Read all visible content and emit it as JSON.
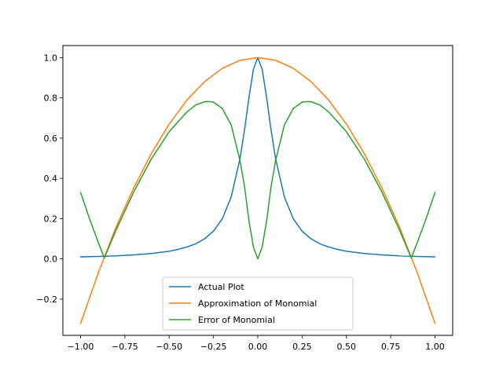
{
  "chart_data": {
    "type": "line",
    "title": "",
    "xlabel": "",
    "ylabel": "",
    "xlim": [
      -1.1,
      1.1
    ],
    "ylim": [
      -0.38,
      1.06
    ],
    "grid": false,
    "legend_position": "bottom-center",
    "x_ticks": [
      -1.0,
      -0.75,
      -0.5,
      -0.25,
      0.0,
      0.25,
      0.5,
      0.75,
      1.0
    ],
    "x_tick_labels": [
      "−1.00",
      "−0.75",
      "−0.50",
      "−0.25",
      "0.00",
      "0.25",
      "0.50",
      "0.75",
      "1.00"
    ],
    "y_ticks": [
      -0.2,
      0.0,
      0.2,
      0.4,
      0.6,
      0.8,
      1.0
    ],
    "y_tick_labels": [
      "−0.2",
      "0.0",
      "0.2",
      "0.4",
      "0.6",
      "0.8",
      "1.0"
    ],
    "series": [
      {
        "name": "Actual Plot",
        "color": "#1f77b4",
        "x": [
          -1.0,
          -0.9,
          -0.8,
          -0.7,
          -0.6,
          -0.5,
          -0.45,
          -0.4,
          -0.35,
          -0.3,
          -0.25,
          -0.2,
          -0.15,
          -0.1,
          -0.075,
          -0.05,
          -0.025,
          0.0,
          0.025,
          0.05,
          0.075,
          0.1,
          0.15,
          0.2,
          0.25,
          0.3,
          0.35,
          0.4,
          0.45,
          0.5,
          0.6,
          0.7,
          0.8,
          0.9,
          1.0
        ],
        "y": [
          0.01,
          0.012,
          0.015,
          0.02,
          0.027,
          0.038,
          0.047,
          0.059,
          0.075,
          0.1,
          0.138,
          0.2,
          0.308,
          0.5,
          0.64,
          0.8,
          0.941,
          1.0,
          0.941,
          0.8,
          0.64,
          0.5,
          0.308,
          0.2,
          0.138,
          0.1,
          0.075,
          0.059,
          0.047,
          0.038,
          0.027,
          0.02,
          0.015,
          0.012,
          0.01
        ]
      },
      {
        "name": "Approximation of Monomial",
        "color": "#ff7f0e",
        "x": [
          -1.0,
          -0.9,
          -0.8,
          -0.7,
          -0.6,
          -0.5,
          -0.4,
          -0.3,
          -0.2,
          -0.1,
          0.0,
          0.1,
          0.2,
          0.3,
          0.4,
          0.5,
          0.6,
          0.7,
          0.8,
          0.9,
          1.0
        ],
        "y": [
          -0.32,
          -0.069,
          0.158,
          0.353,
          0.525,
          0.67,
          0.789,
          0.881,
          0.947,
          0.987,
          1.0,
          0.987,
          0.947,
          0.881,
          0.789,
          0.67,
          0.525,
          0.353,
          0.158,
          -0.069,
          -0.32
        ]
      },
      {
        "name": "Error of Monomial",
        "color": "#2ca02c",
        "x": [
          -1.0,
          -0.95,
          -0.9,
          -0.866,
          -0.8,
          -0.7,
          -0.6,
          -0.5,
          -0.4,
          -0.35,
          -0.3,
          -0.28,
          -0.25,
          -0.2,
          -0.15,
          -0.1,
          -0.075,
          -0.05,
          -0.025,
          0.0,
          0.025,
          0.05,
          0.075,
          0.1,
          0.15,
          0.2,
          0.25,
          0.28,
          0.3,
          0.35,
          0.4,
          0.5,
          0.6,
          0.7,
          0.8,
          0.866,
          0.9,
          0.95,
          1.0
        ],
        "y": [
          0.33,
          0.2,
          0.081,
          0.005,
          0.143,
          0.333,
          0.498,
          0.632,
          0.73,
          0.765,
          0.781,
          0.782,
          0.779,
          0.747,
          0.665,
          0.487,
          0.36,
          0.19,
          0.06,
          0.0,
          0.06,
          0.19,
          0.36,
          0.487,
          0.665,
          0.747,
          0.779,
          0.782,
          0.781,
          0.765,
          0.73,
          0.632,
          0.498,
          0.333,
          0.143,
          0.005,
          0.081,
          0.2,
          0.33
        ]
      }
    ]
  }
}
